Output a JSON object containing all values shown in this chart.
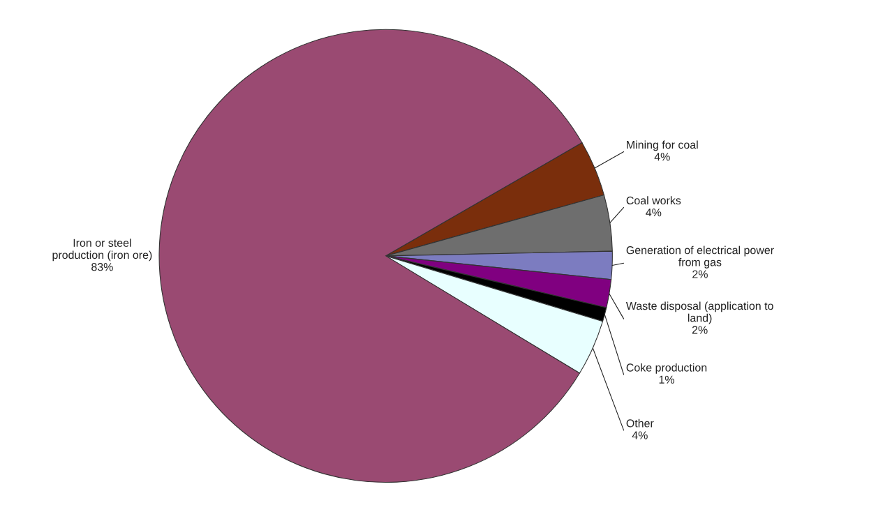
{
  "chart_data": {
    "type": "pie",
    "categories": [
      "Mining for coal",
      "Coal works",
      "Generation of electrical power\nfrom gas",
      "Waste disposal (application to\nland)",
      "Coke production",
      "Other",
      "Iron or steel\nproduction (iron ore)"
    ],
    "values": [
      4,
      4,
      2,
      2,
      1,
      4,
      83
    ],
    "colors": [
      "#7a2e0c",
      "#6e6e6e",
      "#7c7cc0",
      "#800080",
      "#000000",
      "#e8ffff",
      "#9a4a72"
    ],
    "value_labels": [
      "4%",
      "4%",
      "2%",
      "2%",
      "1%",
      "4%",
      "83%"
    ]
  }
}
